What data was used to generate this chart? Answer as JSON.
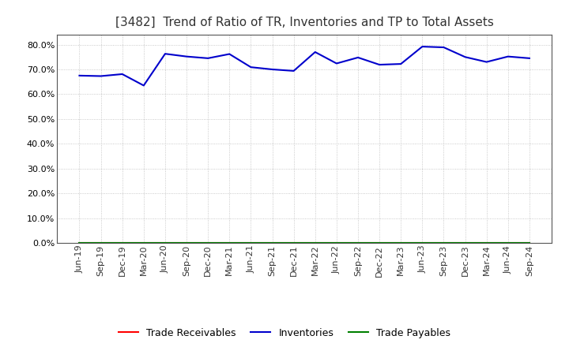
{
  "title": "[3482]  Trend of Ratio of TR, Inventories and TP to Total Assets",
  "x_labels": [
    "Jun-19",
    "Sep-19",
    "Dec-19",
    "Mar-20",
    "Jun-20",
    "Sep-20",
    "Dec-20",
    "Mar-21",
    "Jun-21",
    "Sep-21",
    "Dec-21",
    "Mar-22",
    "Jun-22",
    "Sep-22",
    "Dec-22",
    "Mar-23",
    "Jun-23",
    "Sep-23",
    "Dec-23",
    "Mar-24",
    "Jun-24",
    "Sep-24"
  ],
  "trade_receivables": [
    0.0,
    0.0,
    0.0,
    0.0,
    0.0,
    0.0,
    0.0,
    0.0,
    0.0,
    0.0,
    0.0,
    0.0,
    0.0,
    0.0,
    0.0,
    0.0,
    0.0,
    0.0,
    0.0,
    0.0,
    0.0,
    0.0
  ],
  "inventories": [
    0.675,
    0.673,
    0.681,
    0.635,
    0.763,
    0.752,
    0.745,
    0.762,
    0.709,
    0.7,
    0.694,
    0.77,
    0.724,
    0.748,
    0.719,
    0.722,
    0.792,
    0.789,
    0.75,
    0.73,
    0.752,
    0.745
  ],
  "trade_payables": [
    0.0,
    0.0,
    0.0,
    0.0,
    0.0,
    0.0,
    0.0,
    0.0,
    0.0,
    0.0,
    0.0,
    0.0,
    0.0,
    0.0,
    0.0,
    0.0,
    0.0,
    0.0,
    0.0,
    0.0,
    0.0,
    0.0
  ],
  "line_colors": {
    "trade_receivables": "#ff0000",
    "inventories": "#0000cc",
    "trade_payables": "#008000"
  },
  "ylim": [
    0.0,
    0.84
  ],
  "yticks": [
    0.0,
    0.1,
    0.2,
    0.3,
    0.4,
    0.5,
    0.6,
    0.7,
    0.8
  ],
  "background_color": "#ffffff",
  "plot_bg_color": "#ffffff",
  "grid_color": "#bbbbbb",
  "title_color": "#333333",
  "title_fontsize": 11,
  "tick_fontsize": 8,
  "legend_labels": [
    "Trade Receivables",
    "Inventories",
    "Trade Payables"
  ],
  "legend_fontsize": 9
}
